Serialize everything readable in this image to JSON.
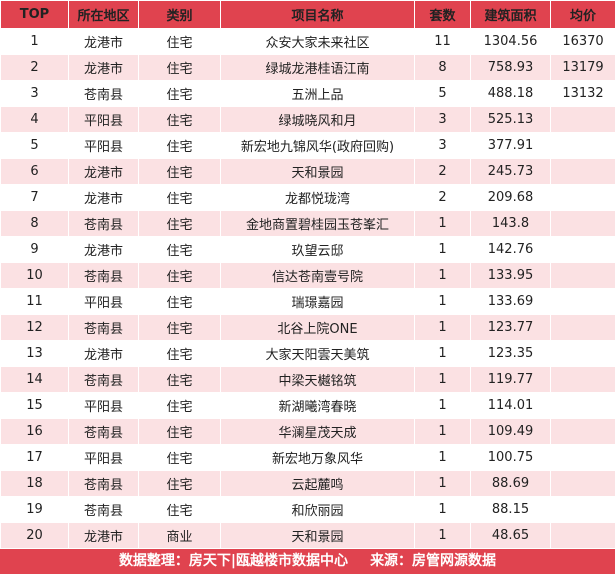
{
  "header": {
    "cols": [
      "TOP",
      "所在地区",
      "类别",
      "项目名称",
      "套数",
      "建筑面积",
      "均价"
    ]
  },
  "rows": [
    {
      "rank": "1",
      "area": "龙港市",
      "type": "住宅",
      "name": "众安大家未来社区",
      "units": "11",
      "sqm": "1304.56",
      "price": "16370"
    },
    {
      "rank": "2",
      "area": "龙港市",
      "type": "住宅",
      "name": "绿城龙港桂语江南",
      "units": "8",
      "sqm": "758.93",
      "price": "13179"
    },
    {
      "rank": "3",
      "area": "苍南县",
      "type": "住宅",
      "name": "五洲上品",
      "units": "5",
      "sqm": "488.18",
      "price": "13132"
    },
    {
      "rank": "4",
      "area": "平阳县",
      "type": "住宅",
      "name": "绿城晓风和月",
      "units": "3",
      "sqm": "525.13",
      "price": ""
    },
    {
      "rank": "5",
      "area": "平阳县",
      "type": "住宅",
      "name": "新宏地九锦风华(政府回购)",
      "units": "3",
      "sqm": "377.91",
      "price": ""
    },
    {
      "rank": "6",
      "area": "龙港市",
      "type": "住宅",
      "name": "天和景园",
      "units": "2",
      "sqm": "245.73",
      "price": ""
    },
    {
      "rank": "7",
      "area": "龙港市",
      "type": "住宅",
      "name": "龙都悦珑湾",
      "units": "2",
      "sqm": "209.68",
      "price": ""
    },
    {
      "rank": "8",
      "area": "苍南县",
      "type": "住宅",
      "name": "金地商置碧桂园玉苍峯汇",
      "units": "1",
      "sqm": "143.8",
      "price": ""
    },
    {
      "rank": "9",
      "area": "龙港市",
      "type": "住宅",
      "name": "玖望云邸",
      "units": "1",
      "sqm": "142.76",
      "price": ""
    },
    {
      "rank": "10",
      "area": "苍南县",
      "type": "住宅",
      "name": "信达苍南壹号院",
      "units": "1",
      "sqm": "133.95",
      "price": ""
    },
    {
      "rank": "11",
      "area": "平阳县",
      "type": "住宅",
      "name": "瑞璟嘉园",
      "units": "1",
      "sqm": "133.69",
      "price": ""
    },
    {
      "rank": "12",
      "area": "苍南县",
      "type": "住宅",
      "name": "北谷上院ONE",
      "units": "1",
      "sqm": "123.77",
      "price": ""
    },
    {
      "rank": "13",
      "area": "龙港市",
      "type": "住宅",
      "name": "大家天阳雲天美筑",
      "units": "1",
      "sqm": "123.35",
      "price": ""
    },
    {
      "rank": "14",
      "area": "苍南县",
      "type": "住宅",
      "name": "中梁天樾铭筑",
      "units": "1",
      "sqm": "119.77",
      "price": ""
    },
    {
      "rank": "15",
      "area": "平阳县",
      "type": "住宅",
      "name": "新湖曦湾春晓",
      "units": "1",
      "sqm": "114.01",
      "price": ""
    },
    {
      "rank": "16",
      "area": "苍南县",
      "type": "住宅",
      "name": "华澜星茂天成",
      "units": "1",
      "sqm": "109.49",
      "price": ""
    },
    {
      "rank": "17",
      "area": "平阳县",
      "type": "住宅",
      "name": "新宏地万象风华",
      "units": "1",
      "sqm": "100.75",
      "price": ""
    },
    {
      "rank": "18",
      "area": "苍南县",
      "type": "住宅",
      "name": "云起麓鸣",
      "units": "1",
      "sqm": "88.69",
      "price": ""
    },
    {
      "rank": "19",
      "area": "苍南县",
      "type": "住宅",
      "name": "和欣丽园",
      "units": "1",
      "sqm": "88.15",
      "price": ""
    },
    {
      "rank": "20",
      "area": "龙港市",
      "type": "商业",
      "name": "天和景园",
      "units": "1",
      "sqm": "48.65",
      "price": ""
    }
  ],
  "footer": {
    "left": "数据整理：房天下|瓯越楼市数据中心",
    "right": "来源：房管网源数据"
  },
  "colors": {
    "header_bg": "#e0434f",
    "stripe_bg": "#fbe1e3"
  }
}
